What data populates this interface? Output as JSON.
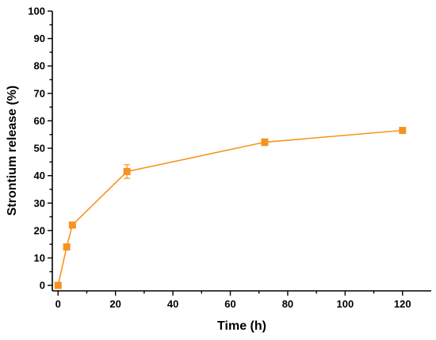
{
  "chart_data": {
    "type": "line",
    "title": "",
    "xlabel": "Time (h)",
    "ylabel": "Strontium release (%)",
    "xlim": [
      -2,
      130
    ],
    "ylim": [
      -2,
      100
    ],
    "x_ticks": [
      0,
      20,
      40,
      60,
      80,
      100,
      120
    ],
    "y_ticks": [
      0,
      10,
      20,
      30,
      40,
      50,
      60,
      70,
      80,
      90,
      100
    ],
    "grid": false,
    "legend": "none",
    "color": "#f7931e",
    "series": [
      {
        "x": [
          0,
          3,
          5,
          24,
          72,
          120
        ],
        "y": [
          0,
          14,
          22,
          41.5,
          52.2,
          56.5
        ],
        "error": [
          0,
          0.5,
          0.5,
          2.5,
          1.2,
          0.6
        ]
      }
    ]
  }
}
